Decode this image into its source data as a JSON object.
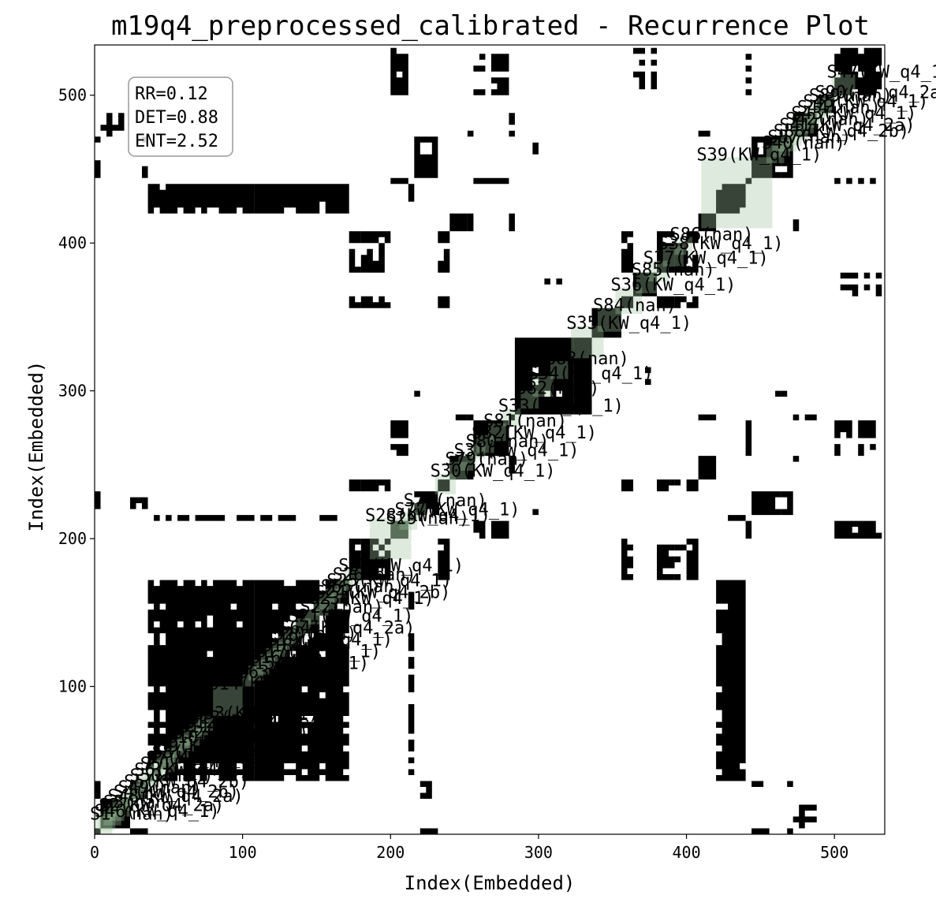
{
  "chart_data": {
    "type": "heatmap",
    "subtype": "recurrence-plot",
    "title": "m19q4_preprocessed_calibrated - Recurrence Plot",
    "xlabel": "Index(Embedded)",
    "ylabel": "Index(Embedded)",
    "xlim": [
      0,
      534
    ],
    "ylim": [
      0,
      534
    ],
    "x_ticks": [
      0,
      100,
      200,
      300,
      400,
      500
    ],
    "y_ticks": [
      100,
      200,
      300,
      400,
      500
    ],
    "x_tick_labels": [
      "0",
      "100",
      "200",
      "300",
      "400",
      "500"
    ],
    "y_tick_labels": [
      "100",
      "200",
      "300",
      "400",
      "500"
    ],
    "stats": {
      "RR": "RR=0.12",
      "DET": "DET=0.88",
      "ENT": "ENT=2.52"
    },
    "stats_box_position": "top-left",
    "colors": {
      "recurrence": "#000000",
      "segment_fill": "#9fc29f",
      "segment_dark": "#2a3a2a",
      "background": "#ffffff"
    },
    "segments": [
      {
        "label": "S1 (nan)",
        "start": 0,
        "end": 12
      },
      {
        "label": "S46(KW_q4_1)",
        "start": 3,
        "end": 14
      },
      {
        "label": "S2(KW_q4_2a)",
        "start": 6,
        "end": 18
      },
      {
        "label": "S3(nan)",
        "start": 9,
        "end": 20
      },
      {
        "label": "S48(KW_q4_2a)",
        "start": 12,
        "end": 24
      },
      {
        "label": "S4(KW_q4_2b)",
        "start": 16,
        "end": 27
      },
      {
        "label": "S49(nan)",
        "start": 19,
        "end": 30
      },
      {
        "label": "S5(KW_q4_2b)",
        "start": 23,
        "end": 34
      },
      {
        "label": "S50(nan)",
        "start": 27,
        "end": 38
      },
      {
        "label": "S6(KW_q4_1)",
        "start": 30,
        "end": 42
      },
      {
        "label": "S51(nan)",
        "start": 34,
        "end": 46
      },
      {
        "label": "S7(KW_q4_2b)",
        "start": 38,
        "end": 50
      },
      {
        "label": "S8(nan)",
        "start": 42,
        "end": 54
      },
      {
        "label": "S9(KW_q4_2b)",
        "start": 46,
        "end": 58
      },
      {
        "label": "S10(nan)",
        "start": 52,
        "end": 64
      },
      {
        "label": "S52(KW_q4_2b)",
        "start": 56,
        "end": 67
      },
      {
        "label": "S11(nan)",
        "start": 60,
        "end": 71
      },
      {
        "label": "S12(KW_q4_2a)",
        "start": 64,
        "end": 74
      },
      {
        "label": "S13(nan)",
        "start": 67,
        "end": 77
      },
      {
        "label": "S53(KW_q4_1)",
        "start": 70,
        "end": 80
      },
      {
        "label": "S14(KW_q4_1)",
        "start": 80,
        "end": 100
      },
      {
        "label": "S63(nan)",
        "start": 100,
        "end": 108
      },
      {
        "label": "S15(KW_q4_1)",
        "start": 104,
        "end": 114
      },
      {
        "label": "S16(nan)",
        "start": 108,
        "end": 118
      },
      {
        "label": "S17(KW_q4_1)",
        "start": 112,
        "end": 122
      },
      {
        "label": "S18(nan)",
        "start": 116,
        "end": 126
      },
      {
        "label": "S19(KW_q4_1)",
        "start": 120,
        "end": 130
      },
      {
        "label": "S20(nan)",
        "start": 124,
        "end": 134
      },
      {
        "label": "S64(KW_q4_2a)",
        "start": 128,
        "end": 138
      },
      {
        "label": "S21(KW_q4_1)",
        "start": 134,
        "end": 146
      },
      {
        "label": "S22(nan)",
        "start": 142,
        "end": 152
      },
      {
        "label": "S23(KW_q4_1)",
        "start": 148,
        "end": 158
      },
      {
        "label": "S24(KW_q4_2b)",
        "start": 152,
        "end": 162
      },
      {
        "label": "S65(nan)",
        "start": 156,
        "end": 166
      },
      {
        "label": "S25(KW_q4_1)",
        "start": 160,
        "end": 170
      },
      {
        "label": "S26(nan)",
        "start": 164,
        "end": 174
      },
      {
        "label": "S27(KW_q4_1)",
        "start": 168,
        "end": 180
      },
      {
        "label": "S28(KW_q4_1)",
        "start": 186,
        "end": 214
      },
      {
        "label": "S29(nan)",
        "start": 200,
        "end": 212
      },
      {
        "label": "S77(KW_q4_1)",
        "start": 206,
        "end": 218
      },
      {
        "label": "S78(nan)",
        "start": 212,
        "end": 224
      },
      {
        "label": "S30(KW_q4_1)",
        "start": 230,
        "end": 244
      },
      {
        "label": "S79(nan)",
        "start": 240,
        "end": 252
      },
      {
        "label": "S31(KW_q4_1)",
        "start": 246,
        "end": 258
      },
      {
        "label": "S80(nan)",
        "start": 254,
        "end": 264
      },
      {
        "label": "S32(KW_q4_1)",
        "start": 258,
        "end": 270
      },
      {
        "label": "S81(nan)",
        "start": 266,
        "end": 278
      },
      {
        "label": "S33(KW_q4_1)",
        "start": 276,
        "end": 288
      },
      {
        "label": "S82(nan)",
        "start": 288,
        "end": 300
      },
      {
        "label": "S34(KW_q4_1)",
        "start": 296,
        "end": 310
      },
      {
        "label": "S83(nan)",
        "start": 308,
        "end": 320
      },
      {
        "label": "S35(KW_q4_1)",
        "start": 322,
        "end": 344
      },
      {
        "label": "S84(nan)",
        "start": 340,
        "end": 356
      },
      {
        "label": "S36(KW_q4_1)",
        "start": 352,
        "end": 370
      },
      {
        "label": "S85(nan)",
        "start": 366,
        "end": 380
      },
      {
        "label": "S37(KW_q4_1)",
        "start": 374,
        "end": 388
      },
      {
        "label": "S38(KW_q4_1)",
        "start": 384,
        "end": 398
      },
      {
        "label": "S86(nan)",
        "start": 392,
        "end": 404
      },
      {
        "label": "S39(KW_q4_1)",
        "start": 410,
        "end": 458
      },
      {
        "label": "S40(nan)",
        "start": 454,
        "end": 466
      },
      {
        "label": "S87(nan)",
        "start": 458,
        "end": 470
      },
      {
        "label": "S88(KW_q4_2b)",
        "start": 462,
        "end": 474
      },
      {
        "label": "S41(KW_q4_2a)",
        "start": 466,
        "end": 478
      },
      {
        "label": "S42(nan)",
        "start": 470,
        "end": 482
      },
      {
        "label": "S43(KW_q4_1)",
        "start": 474,
        "end": 486
      },
      {
        "label": "S44(nan)",
        "start": 478,
        "end": 490
      },
      {
        "label": "S45(KW_q4_1)",
        "start": 482,
        "end": 494
      },
      {
        "label": "S89(nan)",
        "start": 486,
        "end": 498
      },
      {
        "label": "S90(KW_q4_2a)",
        "start": 490,
        "end": 500
      },
      {
        "label": "S47(KW_q4_1)",
        "start": 498,
        "end": 514
      }
    ]
  }
}
